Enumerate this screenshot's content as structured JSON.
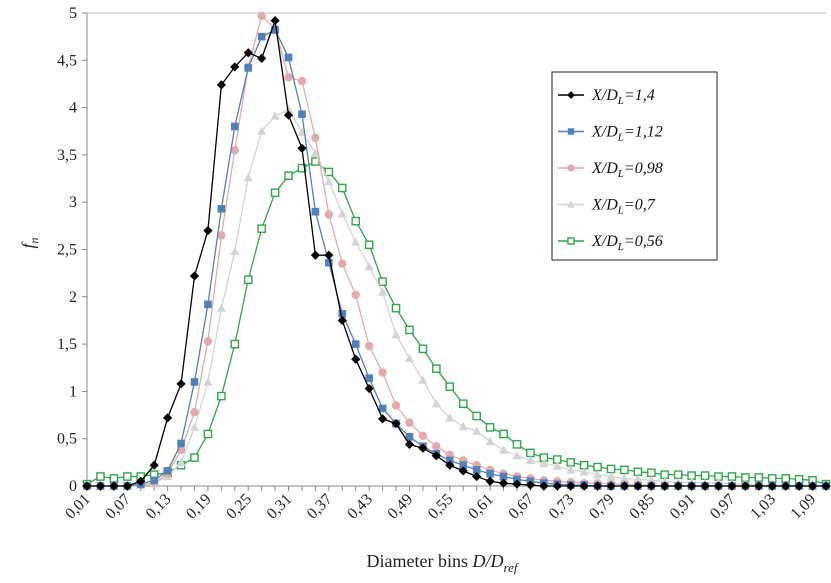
{
  "chart_data": {
    "type": "line",
    "xlabel": {
      "main": "Diameter bins ",
      "italic": "D/D",
      "sub": "ref"
    },
    "ylabel": {
      "main": "f",
      "sub": "n"
    },
    "ylim": [
      0,
      5
    ],
    "y_ticks": [
      "0",
      "0,5",
      "1",
      "1,5",
      "2",
      "2,5",
      "3",
      "3,5",
      "4",
      "4,5",
      "5"
    ],
    "x_tick_labels": [
      "0,01",
      "0,07",
      "0,13",
      "0,19",
      "0,25",
      "0,31",
      "0,37",
      "0,43",
      "0,49",
      "0,55",
      "0,61",
      "0,67",
      "0,73",
      "0,79",
      "0,85",
      "0,91",
      "0,97",
      "1,03",
      "1,09"
    ],
    "x": [
      0.01,
      0.03,
      0.05,
      0.07,
      0.09,
      0.11,
      0.13,
      0.15,
      0.17,
      0.19,
      0.21,
      0.23,
      0.25,
      0.27,
      0.29,
      0.31,
      0.33,
      0.35,
      0.37,
      0.39,
      0.41,
      0.43,
      0.45,
      0.47,
      0.49,
      0.51,
      0.53,
      0.55,
      0.57,
      0.59,
      0.61,
      0.63,
      0.65,
      0.67,
      0.69,
      0.71,
      0.73,
      0.75,
      0.77,
      0.79,
      0.81,
      0.83,
      0.85,
      0.87,
      0.89,
      0.91,
      0.93,
      0.95,
      0.97,
      0.99,
      1.01,
      1.03,
      1.05,
      1.07,
      1.09,
      1.11
    ],
    "grid": false,
    "legend_position": "right",
    "series": [
      {
        "name": "X/DL=1,4",
        "label_main": "X/D",
        "label_sub": "L",
        "label_tail": "=1,4",
        "color": "#000000",
        "marker": "diamond",
        "values": [
          0,
          0,
          0,
          0,
          0.05,
          0.22,
          0.72,
          1.08,
          2.22,
          2.7,
          4.24,
          4.43,
          4.58,
          4.52,
          4.92,
          3.92,
          3.57,
          2.44,
          2.44,
          1.75,
          1.34,
          1.03,
          0.71,
          0.66,
          0.44,
          0.4,
          0.32,
          0.22,
          0.16,
          0.1,
          0.05,
          0.03,
          0.02,
          0.01,
          0,
          0,
          0,
          0,
          0,
          0,
          0,
          0,
          0,
          0,
          0,
          0,
          0,
          0,
          0,
          0,
          0,
          0,
          0,
          0,
          0,
          0
        ]
      },
      {
        "name": "X/DL=1,12",
        "label_main": "X/D",
        "label_sub": "L",
        "label_tail": "=1,12",
        "color": "#4F81BD",
        "marker": "square",
        "values": [
          0,
          0,
          0,
          0,
          0.02,
          0.06,
          0.16,
          0.45,
          1.1,
          1.92,
          2.93,
          3.8,
          4.42,
          4.75,
          4.82,
          4.53,
          3.93,
          2.9,
          2.36,
          1.82,
          1.5,
          1.14,
          0.82,
          0.66,
          0.52,
          0.42,
          0.34,
          0.27,
          0.22,
          0.17,
          0.13,
          0.1,
          0.07,
          0.05,
          0.03,
          0.02,
          0.01,
          0.01,
          0,
          0,
          0,
          0,
          0,
          0,
          0,
          0,
          0,
          0,
          0,
          0,
          0,
          0,
          0,
          0,
          0,
          0
        ]
      },
      {
        "name": "X/DL=0,98",
        "label_main": "X/D",
        "label_sub": "L",
        "label_tail": "=0,98",
        "color": "#E6A9A9",
        "marker": "circle",
        "values": [
          0,
          0,
          0,
          0,
          0.01,
          0.03,
          0.13,
          0.38,
          0.78,
          1.53,
          2.65,
          3.55,
          4.43,
          4.97,
          4.83,
          4.32,
          4.28,
          3.68,
          2.87,
          2.35,
          2.02,
          1.48,
          1.2,
          0.85,
          0.67,
          0.53,
          0.42,
          0.33,
          0.27,
          0.22,
          0.17,
          0.13,
          0.1,
          0.08,
          0.06,
          0.05,
          0.04,
          0.03,
          0.03,
          0.02,
          0.02,
          0.01,
          0.01,
          0,
          0,
          0,
          0,
          0,
          0,
          0,
          0,
          0,
          0,
          0,
          0,
          0
        ]
      },
      {
        "name": "X/DL=0,7",
        "label_main": "X/D",
        "label_sub": "L",
        "label_tail": "=0,7",
        "color": "#D4D4D4",
        "marker": "triangle",
        "values": [
          0,
          0,
          0,
          0,
          0.01,
          0.03,
          0.1,
          0.25,
          0.62,
          1.1,
          1.88,
          2.48,
          3.26,
          3.75,
          3.91,
          3.98,
          3.74,
          3.52,
          3.22,
          2.88,
          2.58,
          2.32,
          2.05,
          1.6,
          1.35,
          1.12,
          0.87,
          0.72,
          0.63,
          0.58,
          0.47,
          0.38,
          0.32,
          0.27,
          0.24,
          0.21,
          0.17,
          0.15,
          0.12,
          0.1,
          0.08,
          0.07,
          0.06,
          0.05,
          0.04,
          0.04,
          0.03,
          0.03,
          0.02,
          0.02,
          0.01,
          0.01,
          0.01,
          0.01,
          0,
          0
        ]
      },
      {
        "name": "X/DL=0,56",
        "label_main": "X/D",
        "label_sub": "L",
        "label_tail": "=0,56",
        "color": "#2EA847",
        "marker": "square-open",
        "values": [
          0.02,
          0.1,
          0.08,
          0.1,
          0.1,
          0.12,
          0.14,
          0.22,
          0.3,
          0.55,
          0.95,
          1.5,
          2.18,
          2.72,
          3.1,
          3.28,
          3.36,
          3.43,
          3.32,
          3.15,
          2.8,
          2.55,
          2.16,
          1.88,
          1.65,
          1.45,
          1.24,
          1.05,
          0.87,
          0.74,
          0.62,
          0.55,
          0.44,
          0.35,
          0.3,
          0.28,
          0.25,
          0.22,
          0.2,
          0.18,
          0.17,
          0.15,
          0.14,
          0.12,
          0.12,
          0.11,
          0.11,
          0.1,
          0.1,
          0.09,
          0.09,
          0.08,
          0.08,
          0.07,
          0.06,
          0.02
        ]
      }
    ]
  }
}
